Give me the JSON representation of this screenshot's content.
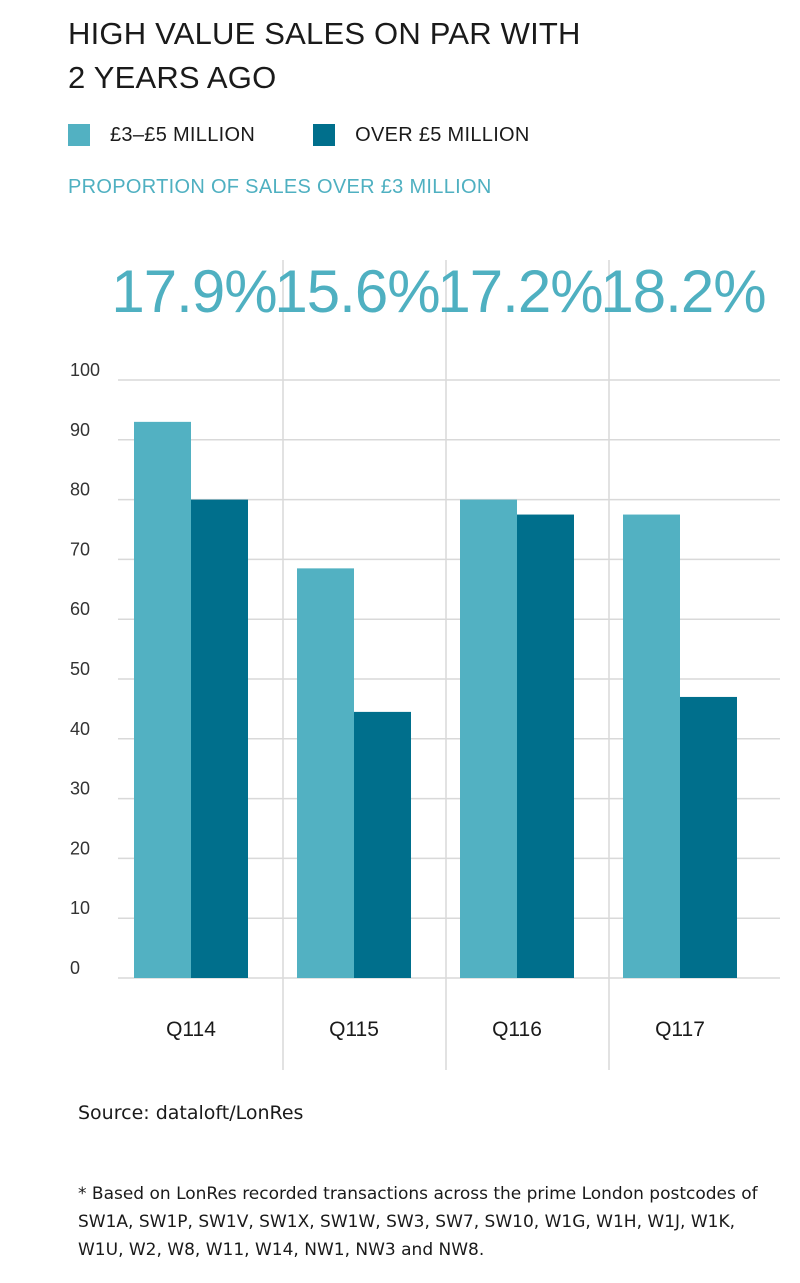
{
  "title_line1": "HIGH VALUE SALES ON PAR WITH",
  "title_line2": "2 YEARS AGO",
  "legend": [
    {
      "label": "£3–£5 MILLION",
      "color": "#52b1c2"
    },
    {
      "label": "OVER £5 MILLION",
      "color": "#006f8c"
    }
  ],
  "subtitle": "PROPORTION OF SALES OVER £3 MILLION",
  "source": "Source: dataloft/LonRes",
  "footnote": "* Based on LonRes recorded transactions across the prime London postcodes of SW1A, SW1P, SW1V, SW1X, SW1W, SW3, SW7, SW10, W1G, W1H, W1J, W1K, W1U, W2, W8, W11, W14, NW1, NW3 and NW8.",
  "chart_data": {
    "type": "bar",
    "categories": [
      "Q114",
      "Q115",
      "Q116",
      "Q117"
    ],
    "proportions": [
      "17.9%",
      "15.6%",
      "17.2%",
      "18.2%"
    ],
    "series": [
      {
        "name": "£3–£5 MILLION",
        "color": "#52b1c2",
        "values": [
          93,
          68.5,
          80,
          77.5
        ]
      },
      {
        "name": "OVER £5 MILLION",
        "color": "#006f8c",
        "values": [
          80,
          44.5,
          77.5,
          47
        ]
      }
    ],
    "ylim": [
      0,
      100
    ],
    "yticks": [
      0,
      10,
      20,
      30,
      40,
      50,
      60,
      70,
      80,
      90,
      100
    ],
    "grid": true,
    "legend_position": "top-left",
    "proportion_color": "#4fb0c1"
  }
}
